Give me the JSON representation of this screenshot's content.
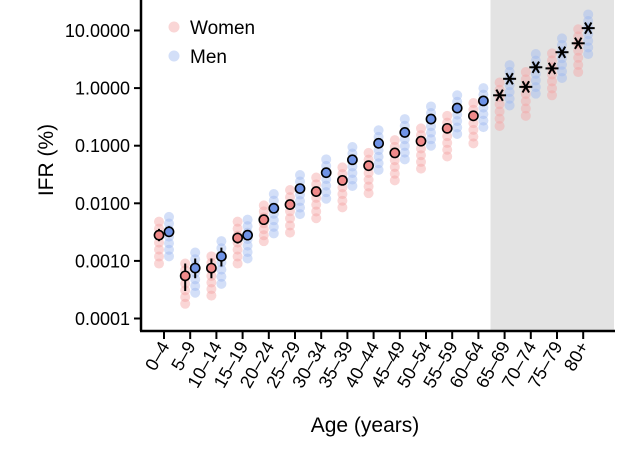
{
  "chart_data": {
    "type": "scatter",
    "title": "",
    "xlabel": "Age (years)",
    "ylabel": "IFR (%)",
    "yscale": "log",
    "ylim": [
      6e-05,
      25
    ],
    "yticks": [
      {
        "value": 0.0001,
        "label": "0.0001"
      },
      {
        "value": 0.001,
        "label": "0.0010"
      },
      {
        "value": 0.01,
        "label": "0.0100"
      },
      {
        "value": 0.1,
        "label": "0.1000"
      },
      {
        "value": 1,
        "label": "1.0000"
      },
      {
        "value": 10,
        "label": "10.0000"
      }
    ],
    "categories": [
      "0–4",
      "5–9",
      "10–14",
      "15–19",
      "20–24",
      "25–29",
      "30–34",
      "35–39",
      "40–44",
      "45–49",
      "50–54",
      "55–59",
      "60–64",
      "65–69",
      "70–74",
      "75–79",
      "80+"
    ],
    "shaded_region": {
      "from": "65–69",
      "to": "80+",
      "color": "#e3e3e3"
    },
    "legend_position": "top-left",
    "series": [
      {
        "name": "Women",
        "color": "#f08a8a",
        "marker_color": "#f5a3a3",
        "estimates": [
          0.0028,
          0.00055,
          0.00075,
          0.0025,
          0.0052,
          0.0095,
          0.016,
          0.025,
          0.045,
          0.075,
          0.12,
          0.2,
          0.33,
          0.75,
          1.05,
          2.2,
          6.0
        ],
        "ci_low": [
          0.0022,
          0.0003,
          0.0005,
          0.002,
          0.0045,
          0.0085,
          0.0145,
          0.023,
          0.042,
          0.07,
          0.112,
          0.19,
          0.315,
          0.7,
          0.98,
          2.05,
          5.6
        ],
        "ci_high": [
          0.0036,
          0.0009,
          0.0011,
          0.0031,
          0.006,
          0.0105,
          0.0175,
          0.027,
          0.048,
          0.08,
          0.128,
          0.21,
          0.345,
          0.8,
          1.12,
          2.35,
          6.4
        ],
        "draws_low": [
          0.0009,
          0.00018,
          0.00025,
          0.0009,
          0.0022,
          0.0031,
          0.0055,
          0.0085,
          0.015,
          0.025,
          0.04,
          0.065,
          0.11,
          0.22,
          0.33,
          0.75,
          1.9
        ],
        "draws_high": [
          0.0048,
          0.0009,
          0.0012,
          0.0048,
          0.0092,
          0.017,
          0.028,
          0.042,
          0.075,
          0.125,
          0.2,
          0.33,
          0.55,
          1.25,
          1.9,
          4.0,
          10.5
        ]
      },
      {
        "name": "Men",
        "color": "#6f93e6",
        "marker_color": "#9db8f0",
        "estimates": [
          0.0032,
          0.00075,
          0.0012,
          0.0028,
          0.0082,
          0.018,
          0.034,
          0.057,
          0.11,
          0.17,
          0.29,
          0.45,
          0.6,
          1.45,
          2.3,
          4.2,
          11.0
        ],
        "ci_low": [
          0.0026,
          0.0005,
          0.0008,
          0.0023,
          0.0072,
          0.0165,
          0.031,
          0.053,
          0.102,
          0.16,
          0.275,
          0.43,
          0.57,
          1.35,
          2.15,
          3.95,
          10.3
        ],
        "ci_high": [
          0.004,
          0.0011,
          0.0017,
          0.0034,
          0.0092,
          0.0195,
          0.037,
          0.061,
          0.118,
          0.18,
          0.305,
          0.47,
          0.63,
          1.55,
          2.45,
          4.45,
          11.7
        ],
        "draws_low": [
          0.0012,
          0.00028,
          0.0004,
          0.0011,
          0.003,
          0.0065,
          0.012,
          0.02,
          0.038,
          0.058,
          0.1,
          0.16,
          0.21,
          0.5,
          0.8,
          1.5,
          3.9
        ],
        "draws_high": [
          0.0058,
          0.0014,
          0.0022,
          0.0052,
          0.0145,
          0.031,
          0.058,
          0.095,
          0.185,
          0.29,
          0.48,
          0.75,
          1.0,
          2.5,
          3.9,
          7.3,
          19.0
        ]
      }
    ],
    "markers": {
      "under_65": "circle",
      "65_and_over": "asterisk"
    }
  }
}
